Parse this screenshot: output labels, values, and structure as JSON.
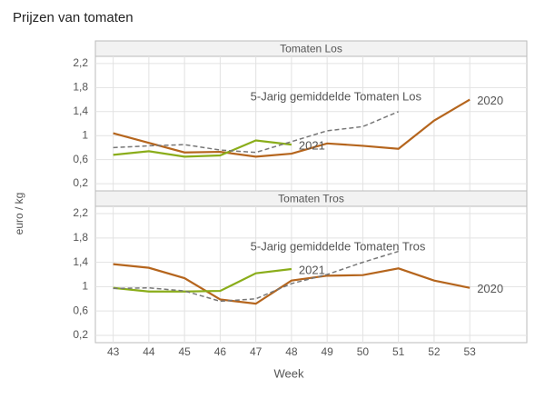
{
  "title": "Prijzen van tomaten",
  "ylabel": "euro / kg",
  "xlabel": "Week",
  "chart_data": [
    {
      "type": "line",
      "title": "Tomaten Los",
      "xlim": [
        42.5,
        54.6
      ],
      "xticks": [
        43,
        44,
        45,
        46,
        47,
        48,
        49,
        50,
        51,
        52,
        53
      ],
      "ylim": [
        0.08,
        2.32
      ],
      "yticks": [
        {
          "value": 0.2,
          "label": "0,2"
        },
        {
          "value": 0.6,
          "label": "0,6"
        },
        1,
        {
          "value": 1.4,
          "label": "1,4"
        },
        {
          "value": 1.8,
          "label": "1,8"
        },
        {
          "value": 2.2,
          "label": "2,2"
        }
      ],
      "grid": true,
      "series": [
        {
          "name": "2020",
          "color": "#b5651d",
          "dash": false,
          "x": [
            43,
            44,
            45,
            46,
            47,
            48,
            49,
            50,
            51,
            52,
            53
          ],
          "values": [
            1.04,
            0.88,
            0.72,
            0.73,
            0.65,
            0.7,
            0.87,
            0.83,
            0.78,
            1.25,
            1.6
          ]
        },
        {
          "name": "2021",
          "color": "#8aad1a",
          "dash": false,
          "x": [
            43,
            44,
            45,
            46,
            47,
            48
          ],
          "values": [
            0.68,
            0.74,
            0.65,
            0.67,
            0.92,
            0.85
          ]
        },
        {
          "name": "5-Jarig gemiddelde Tomaten Los",
          "color": "#777777",
          "dash": true,
          "x": [
            43,
            44,
            45,
            46,
            47,
            48,
            49,
            50,
            51
          ],
          "values": [
            0.8,
            0.83,
            0.85,
            0.76,
            0.72,
            0.9,
            1.08,
            1.15,
            1.4
          ]
        }
      ]
    },
    {
      "type": "line",
      "title": "Tomaten Tros",
      "xlim": [
        42.5,
        54.6
      ],
      "xticks": [
        43,
        44,
        45,
        46,
        47,
        48,
        49,
        50,
        51,
        52,
        53
      ],
      "ylim": [
        0.08,
        2.32
      ],
      "yticks": [
        {
          "value": 0.2,
          "label": "0,2"
        },
        {
          "value": 0.6,
          "label": "0,6"
        },
        1,
        {
          "value": 1.4,
          "label": "1,4"
        },
        {
          "value": 1.8,
          "label": "1,8"
        },
        {
          "value": 2.2,
          "label": "2,2"
        }
      ],
      "grid": true,
      "series": [
        {
          "name": "2020",
          "color": "#b5651d",
          "dash": false,
          "x": [
            43,
            44,
            45,
            46,
            47,
            48,
            49,
            50,
            51,
            52,
            53
          ],
          "values": [
            1.37,
            1.31,
            1.14,
            0.79,
            0.72,
            1.1,
            1.18,
            1.19,
            1.3,
            1.1,
            0.98
          ]
        },
        {
          "name": "2021",
          "color": "#8aad1a",
          "dash": false,
          "x": [
            43,
            44,
            45,
            46,
            47,
            48
          ],
          "values": [
            0.98,
            0.92,
            0.92,
            0.93,
            1.22,
            1.29
          ]
        },
        {
          "name": "5-Jarig gemiddelde Tomaten Tros",
          "color": "#777777",
          "dash": true,
          "x": [
            43,
            44,
            45,
            46,
            47,
            48,
            49,
            50,
            51
          ],
          "values": [
            0.97,
            0.98,
            0.93,
            0.76,
            0.8,
            1.05,
            1.2,
            1.4,
            1.58
          ]
        }
      ]
    }
  ]
}
